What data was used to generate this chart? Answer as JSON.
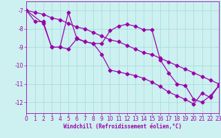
{
  "xlabel": "Windchill (Refroidissement éolien,°C)",
  "bg_color": "#cdf0f0",
  "line_color": "#9900aa",
  "grid_color": "#aadddd",
  "x_min": 0,
  "x_max": 23,
  "y_min": -12.6,
  "y_max": -6.5,
  "yticks": [
    -7,
    -8,
    -9,
    -10,
    -11,
    -12
  ],
  "xticks": [
    0,
    1,
    2,
    3,
    4,
    5,
    6,
    7,
    8,
    9,
    10,
    11,
    12,
    13,
    14,
    15,
    16,
    17,
    18,
    19,
    20,
    21,
    22,
    23
  ],
  "series1_x": [
    0,
    1,
    2,
    3,
    4,
    5,
    6,
    7,
    8,
    9,
    10,
    11,
    12,
    13,
    14,
    15,
    16,
    17,
    18,
    19,
    20,
    21,
    22,
    23
  ],
  "series1_y": [
    -7.0,
    -7.1,
    -7.2,
    -7.4,
    -7.5,
    -7.7,
    -7.9,
    -8.0,
    -8.2,
    -8.4,
    -8.6,
    -8.7,
    -8.9,
    -9.1,
    -9.3,
    -9.4,
    -9.6,
    -9.8,
    -10.0,
    -10.2,
    -10.4,
    -10.6,
    -10.8,
    -11.0
  ],
  "series2_x": [
    0,
    1,
    2,
    3,
    4,
    5,
    6,
    7,
    8,
    9,
    10,
    11,
    12,
    13,
    14,
    15,
    16,
    17,
    18,
    19,
    20,
    21,
    22,
    23
  ],
  "series2_y": [
    -7.0,
    -7.6,
    -7.6,
    -9.0,
    -9.0,
    -7.1,
    -8.5,
    -8.7,
    -8.8,
    -8.8,
    -8.1,
    -7.85,
    -7.75,
    -7.85,
    -8.05,
    -8.05,
    -9.7,
    -10.4,
    -11.0,
    -11.1,
    -11.85,
    -12.0,
    -11.65,
    -11.1
  ],
  "series3_x": [
    0,
    2,
    3,
    4,
    5,
    6,
    7,
    8,
    9,
    10,
    11,
    12,
    13,
    14,
    15,
    16,
    17,
    18,
    19,
    20,
    21,
    22,
    23
  ],
  "series3_y": [
    -7.0,
    -7.7,
    -9.0,
    -9.0,
    -9.1,
    -8.55,
    -8.7,
    -8.8,
    -9.4,
    -10.25,
    -10.35,
    -10.45,
    -10.55,
    -10.7,
    -10.9,
    -11.15,
    -11.45,
    -11.65,
    -11.85,
    -12.1,
    -11.5,
    -11.75,
    -11.1
  ],
  "marker": "D",
  "markersize": 2.5,
  "linewidth": 0.9
}
